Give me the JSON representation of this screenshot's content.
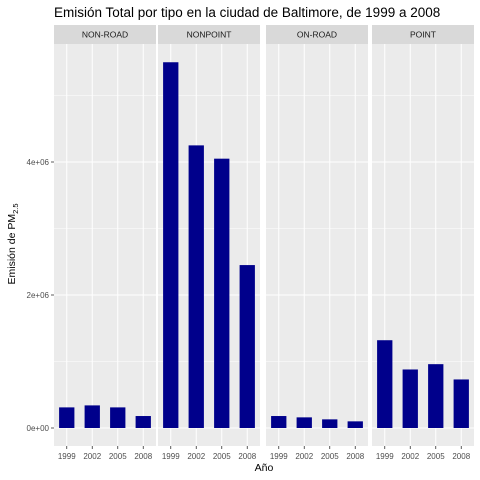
{
  "chart_data": {
    "type": "bar",
    "title": "Emisión Total por tipo en la ciudad de Baltimore, de 1999 a 2008",
    "xlabel": "Año",
    "ylabel_main": "Emisión de PM",
    "ylabel_sub": "2.5",
    "categories": [
      "1999",
      "2002",
      "2005",
      "2008"
    ],
    "ylim": [
      0,
      5800000
    ],
    "yticks": [
      0,
      2000000,
      4000000
    ],
    "ytick_labels": [
      "0e+00",
      "2e+06",
      "4e+06"
    ],
    "bar_color": "#00008B",
    "panel_bg": "#EBEBEB",
    "strip_bg": "#D9D9D9",
    "grid_color": "#FFFFFF",
    "grid": true,
    "legend": "none",
    "panels": [
      {
        "name": "NON-ROAD",
        "values": [
          310000,
          340000,
          310000,
          180000
        ]
      },
      {
        "name": "NONPOINT",
        "values": [
          5500000,
          4250000,
          4050000,
          2450000
        ]
      },
      {
        "name": "ON-ROAD",
        "values": [
          180000,
          160000,
          130000,
          100000
        ]
      },
      {
        "name": "POINT",
        "values": [
          1320000,
          880000,
          960000,
          730000
        ]
      }
    ]
  }
}
